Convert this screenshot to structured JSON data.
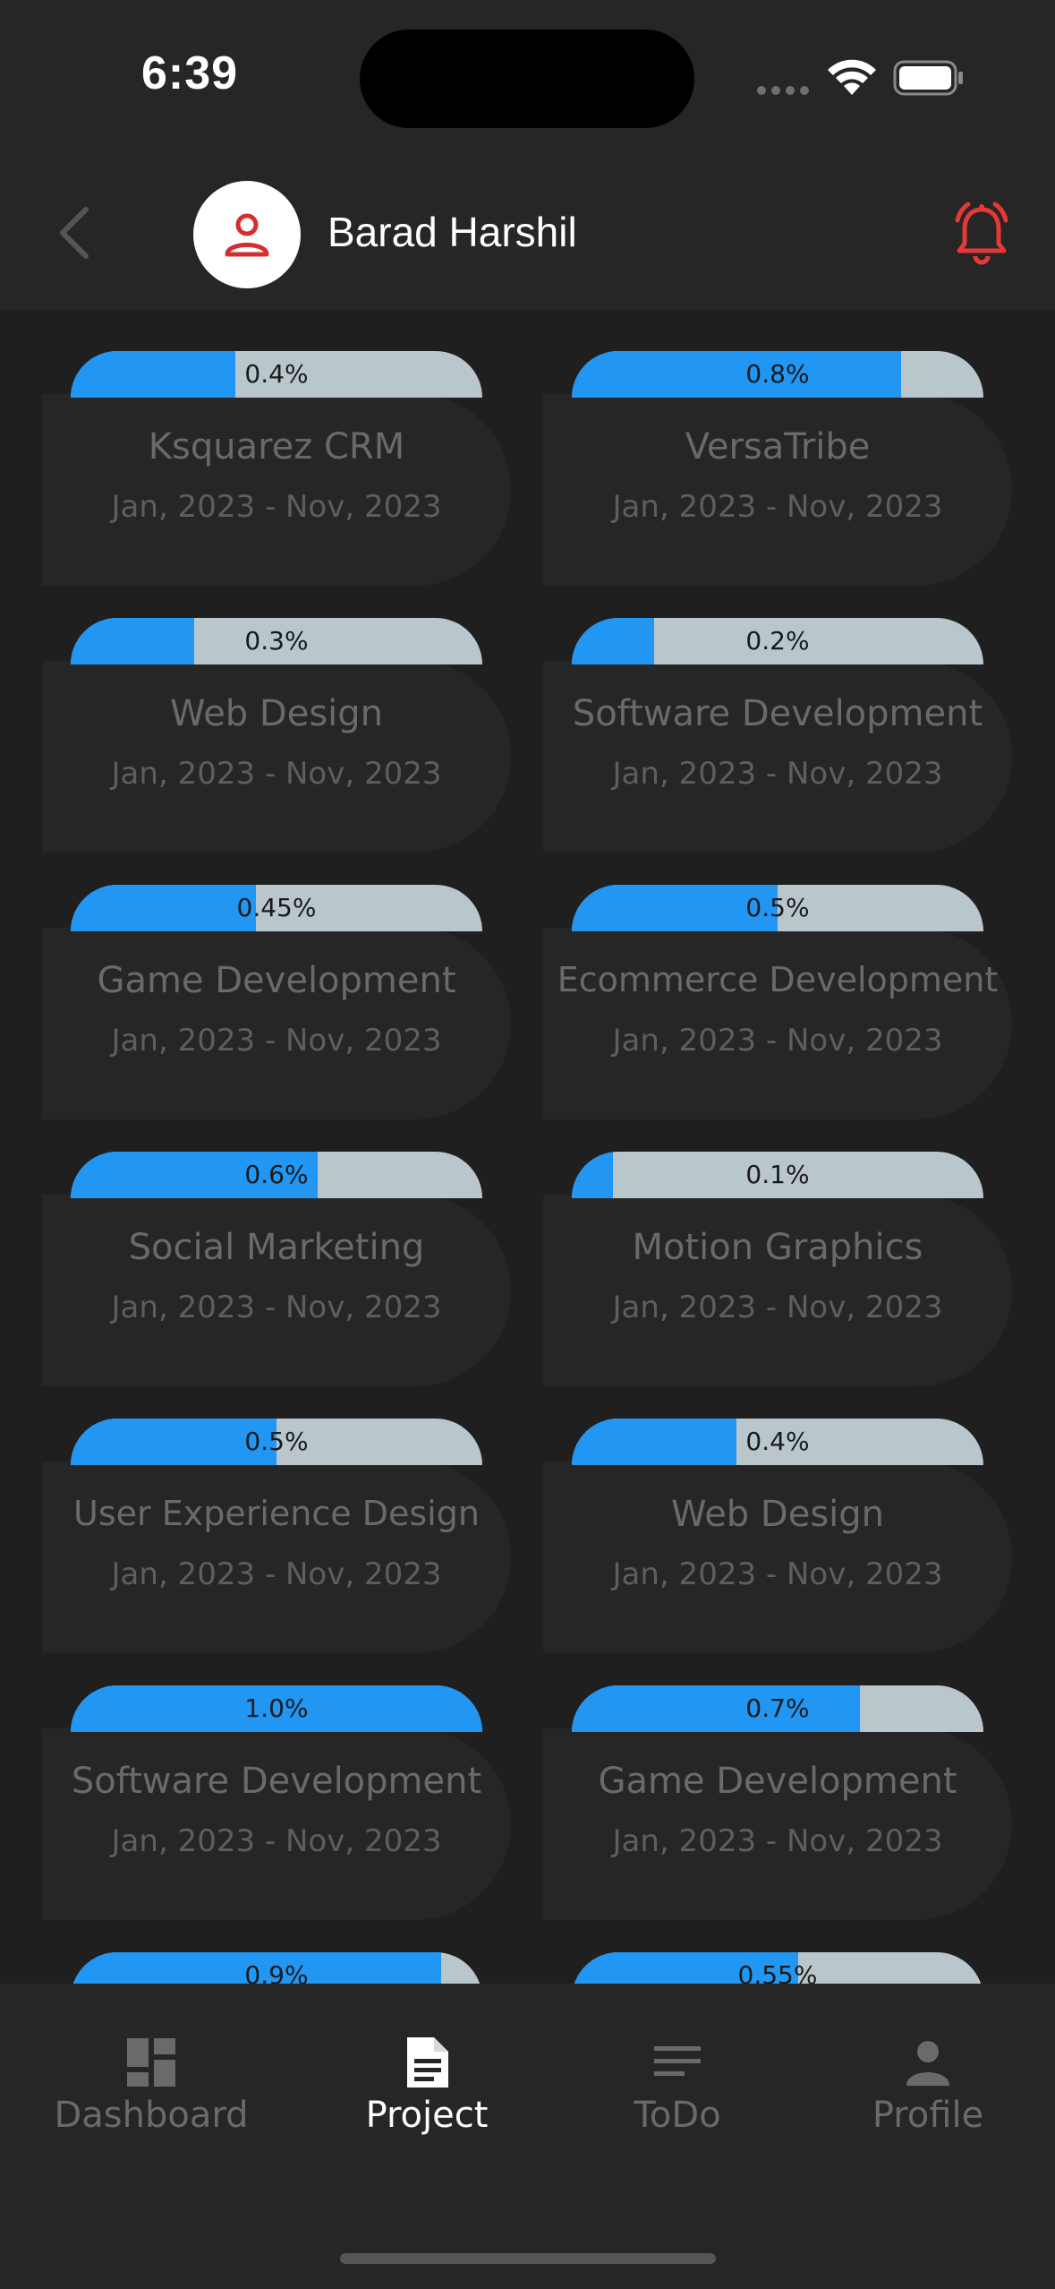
{
  "status": {
    "time": "6:39"
  },
  "header": {
    "username": "Barad Harshil"
  },
  "projects": [
    {
      "title": "Ksquarez CRM",
      "dates": "Jan, 2023 - Nov, 2023",
      "progress_label": "0.4%",
      "progress": 0.4
    },
    {
      "title": "VersaTribe",
      "dates": "Jan, 2023 - Nov, 2023",
      "progress_label": "0.8%",
      "progress": 0.8
    },
    {
      "title": "Web Design",
      "dates": "Jan, 2023 - Nov, 2023",
      "progress_label": "0.3%",
      "progress": 0.3
    },
    {
      "title": "Software Development",
      "dates": "Jan, 2023 - Nov, 2023",
      "progress_label": "0.2%",
      "progress": 0.2
    },
    {
      "title": "Game Development",
      "dates": "Jan, 2023 - Nov, 2023",
      "progress_label": "0.45%",
      "progress": 0.45
    },
    {
      "title": "Ecommerce Development",
      "dates": "Jan, 2023 - Nov, 2023",
      "progress_label": "0.5%",
      "progress": 0.5
    },
    {
      "title": "Social Marketing",
      "dates": "Jan, 2023 - Nov, 2023",
      "progress_label": "0.6%",
      "progress": 0.6
    },
    {
      "title": "Motion Graphics",
      "dates": "Jan, 2023 - Nov, 2023",
      "progress_label": "0.1%",
      "progress": 0.1
    },
    {
      "title": "User Experience Design",
      "dates": "Jan, 2023 - Nov, 2023",
      "progress_label": "0.5%",
      "progress": 0.5
    },
    {
      "title": "Web Design",
      "dates": "Jan, 2023 - Nov, 2023",
      "progress_label": "0.4%",
      "progress": 0.4
    },
    {
      "title": "Software Development",
      "dates": "Jan, 2023 - Nov, 2023",
      "progress_label": "1.0%",
      "progress": 1.0
    },
    {
      "title": "Game Development",
      "dates": "Jan, 2023 - Nov, 2023",
      "progress_label": "0.7%",
      "progress": 0.7
    },
    {
      "title": "",
      "dates": "",
      "progress_label": "0.9%",
      "progress": 0.9
    },
    {
      "title": "",
      "dates": "",
      "progress_label": "0.55%",
      "progress": 0.55
    }
  ],
  "nav": {
    "items": [
      {
        "label": "Dashboard",
        "icon": "dashboard-icon"
      },
      {
        "label": "Project",
        "icon": "document-icon"
      },
      {
        "label": "ToDo",
        "icon": "list-icon"
      },
      {
        "label": "Profile",
        "icon": "person-icon"
      }
    ],
    "active": "Project"
  },
  "colors": {
    "accent": "#2196f3",
    "bell": "#e53935",
    "track": "#b9c6cb",
    "background": "#1f1f1f",
    "surface": "#262626"
  }
}
